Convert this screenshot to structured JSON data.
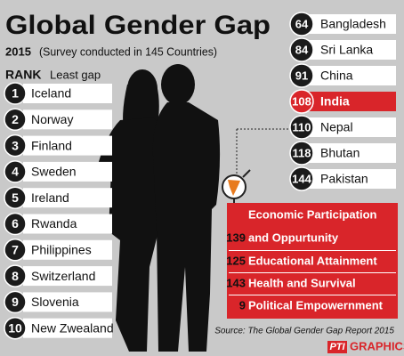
{
  "header": {
    "title": "Global Gender Gap",
    "year": "2015",
    "subtitle": "(Survey conducted in 145 Countries)"
  },
  "least_gap": {
    "rank_label": "RANK",
    "label": "Least gap",
    "rows": [
      [
        "1",
        "Iceland"
      ],
      [
        "2",
        "Norway"
      ],
      [
        "3",
        "Finland"
      ],
      [
        "4",
        "Sweden"
      ],
      [
        "5",
        "Ireland"
      ],
      [
        "6",
        "Rwanda"
      ],
      [
        "7",
        "Philippines"
      ],
      [
        "8",
        "Switzerland"
      ],
      [
        "9",
        "Slovenia"
      ],
      [
        "10",
        "New Zwealand"
      ]
    ]
  },
  "south_asia": {
    "rows": [
      [
        "64",
        "Bangladesh"
      ],
      [
        "84",
        "Sri Lanka"
      ],
      [
        "91",
        "China"
      ],
      [
        "108",
        "India"
      ],
      [
        "110",
        "Nepal"
      ],
      [
        "118",
        "Bhutan"
      ],
      [
        "144",
        "Pakistan"
      ]
    ],
    "highlight": 3
  },
  "india": {
    "rows": [
      {
        "rank": "139",
        "label_lines": [
          "Economic Participation",
          "and Oppurtunity"
        ]
      },
      {
        "rank": "125",
        "label_lines": [
          "Educational Attainment"
        ]
      },
      {
        "rank": "143",
        "label_lines": [
          "Health and Survival"
        ]
      },
      {
        "rank": "9",
        "label_lines": [
          "Political Empowernment"
        ]
      }
    ]
  },
  "footer": {
    "source": "Source: The Global Gender Gap Report 2015",
    "agency": "PTI",
    "brand": "GRAPHICS"
  }
}
